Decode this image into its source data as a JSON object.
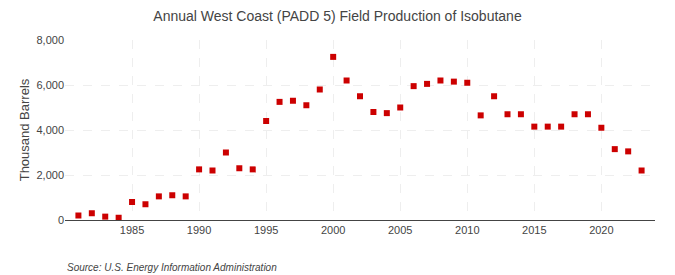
{
  "chart_data": {
    "type": "scatter",
    "title": "Annual West Coast (PADD 5) Field Production of Isobutane",
    "ylabel": "Thousand Barrels",
    "annotation": "Source: U.S. Energy Information Administration",
    "color": "#cc0000",
    "marker": "square",
    "grid": true,
    "x": [
      1981,
      1982,
      1983,
      1984,
      1985,
      1986,
      1987,
      1988,
      1989,
      1990,
      1991,
      1992,
      1993,
      1994,
      1995,
      1996,
      1997,
      1998,
      1999,
      2000,
      2001,
      2002,
      2003,
      2004,
      2005,
      2006,
      2007,
      2008,
      2009,
      2010,
      2011,
      2012,
      2013,
      2014,
      2015,
      2016,
      2017,
      2018,
      2019,
      2020,
      2021,
      2022,
      2023
    ],
    "values": [
      200,
      300,
      150,
      100,
      800,
      700,
      1050,
      1100,
      1050,
      2250,
      2200,
      3000,
      2300,
      2250,
      4400,
      5250,
      5300,
      5100,
      5800,
      7250,
      6200,
      5500,
      4800,
      4750,
      5000,
      5950,
      6050,
      6200,
      6150,
      6100,
      4650,
      5500,
      4700,
      4700,
      4150,
      4150,
      4150,
      4700,
      4700,
      4100,
      3150,
      3050,
      2200
    ],
    "xlim": [
      1980,
      2024
    ],
    "xticks": [
      1985,
      1990,
      1995,
      2000,
      2005,
      2010,
      2015,
      2020
    ],
    "ylim": [
      0,
      8000
    ],
    "yticks": [
      0,
      {
        "value": 2000,
        "label": "2,000"
      },
      {
        "value": 4000,
        "label": "4,000"
      },
      {
        "value": 6000,
        "label": "6,000"
      },
      {
        "value": 8000,
        "label": "8,000"
      }
    ]
  }
}
